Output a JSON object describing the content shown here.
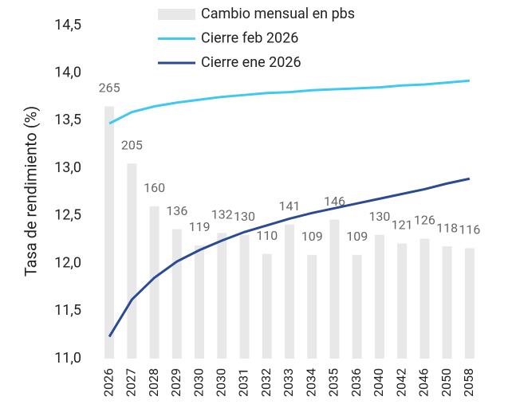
{
  "chart_data": {
    "type": "bar_line",
    "y_label": "Tasa de rendimiento (%)",
    "categories": [
      "2026",
      "2027",
      "2028",
      "2029",
      "2030",
      "2030",
      "2031",
      "2032",
      "2033",
      "2034",
      "2035",
      "2036",
      "2040",
      "2042",
      "2046",
      "2050",
      "2058"
    ],
    "series": [
      {
        "name": "Cambio mensual en pbs",
        "type": "bar",
        "axis": "y2",
        "color": "#e8e8e8",
        "values": [
          265,
          205,
          160,
          136,
          119,
          132,
          130,
          110,
          141,
          109,
          146,
          109,
          130,
          121,
          126,
          118,
          116
        ]
      },
      {
        "name": "Cierre feb 2026",
        "type": "line",
        "color": "#3fc8f0",
        "values": [
          13.47,
          13.59,
          13.65,
          13.69,
          13.72,
          13.75,
          13.77,
          13.79,
          13.8,
          13.82,
          13.83,
          13.84,
          13.85,
          13.87,
          13.88,
          13.9,
          13.92
        ]
      },
      {
        "name": "Cierre ene 2026",
        "type": "line",
        "color": "#2a4a94",
        "values": [
          11.23,
          11.62,
          11.85,
          12.02,
          12.14,
          12.24,
          12.33,
          12.4,
          12.47,
          12.53,
          12.58,
          12.63,
          12.68,
          12.73,
          12.78,
          12.84,
          12.89
        ]
      }
    ],
    "ylim": [
      11.0,
      14.5
    ],
    "yticks": [
      {
        "value": 11.0,
        "label": "11,0"
      },
      {
        "value": 11.5,
        "label": "11,5"
      },
      {
        "value": 12.0,
        "label": "12,0"
      },
      {
        "value": 12.5,
        "label": "12,5"
      },
      {
        "value": 13.0,
        "label": "13,0"
      },
      {
        "value": 13.5,
        "label": "13,5"
      },
      {
        "value": 14.0,
        "label": "14,0"
      },
      {
        "value": 14.5,
        "label": "14,5"
      }
    ],
    "y2lim": [
      0,
      350
    ]
  }
}
